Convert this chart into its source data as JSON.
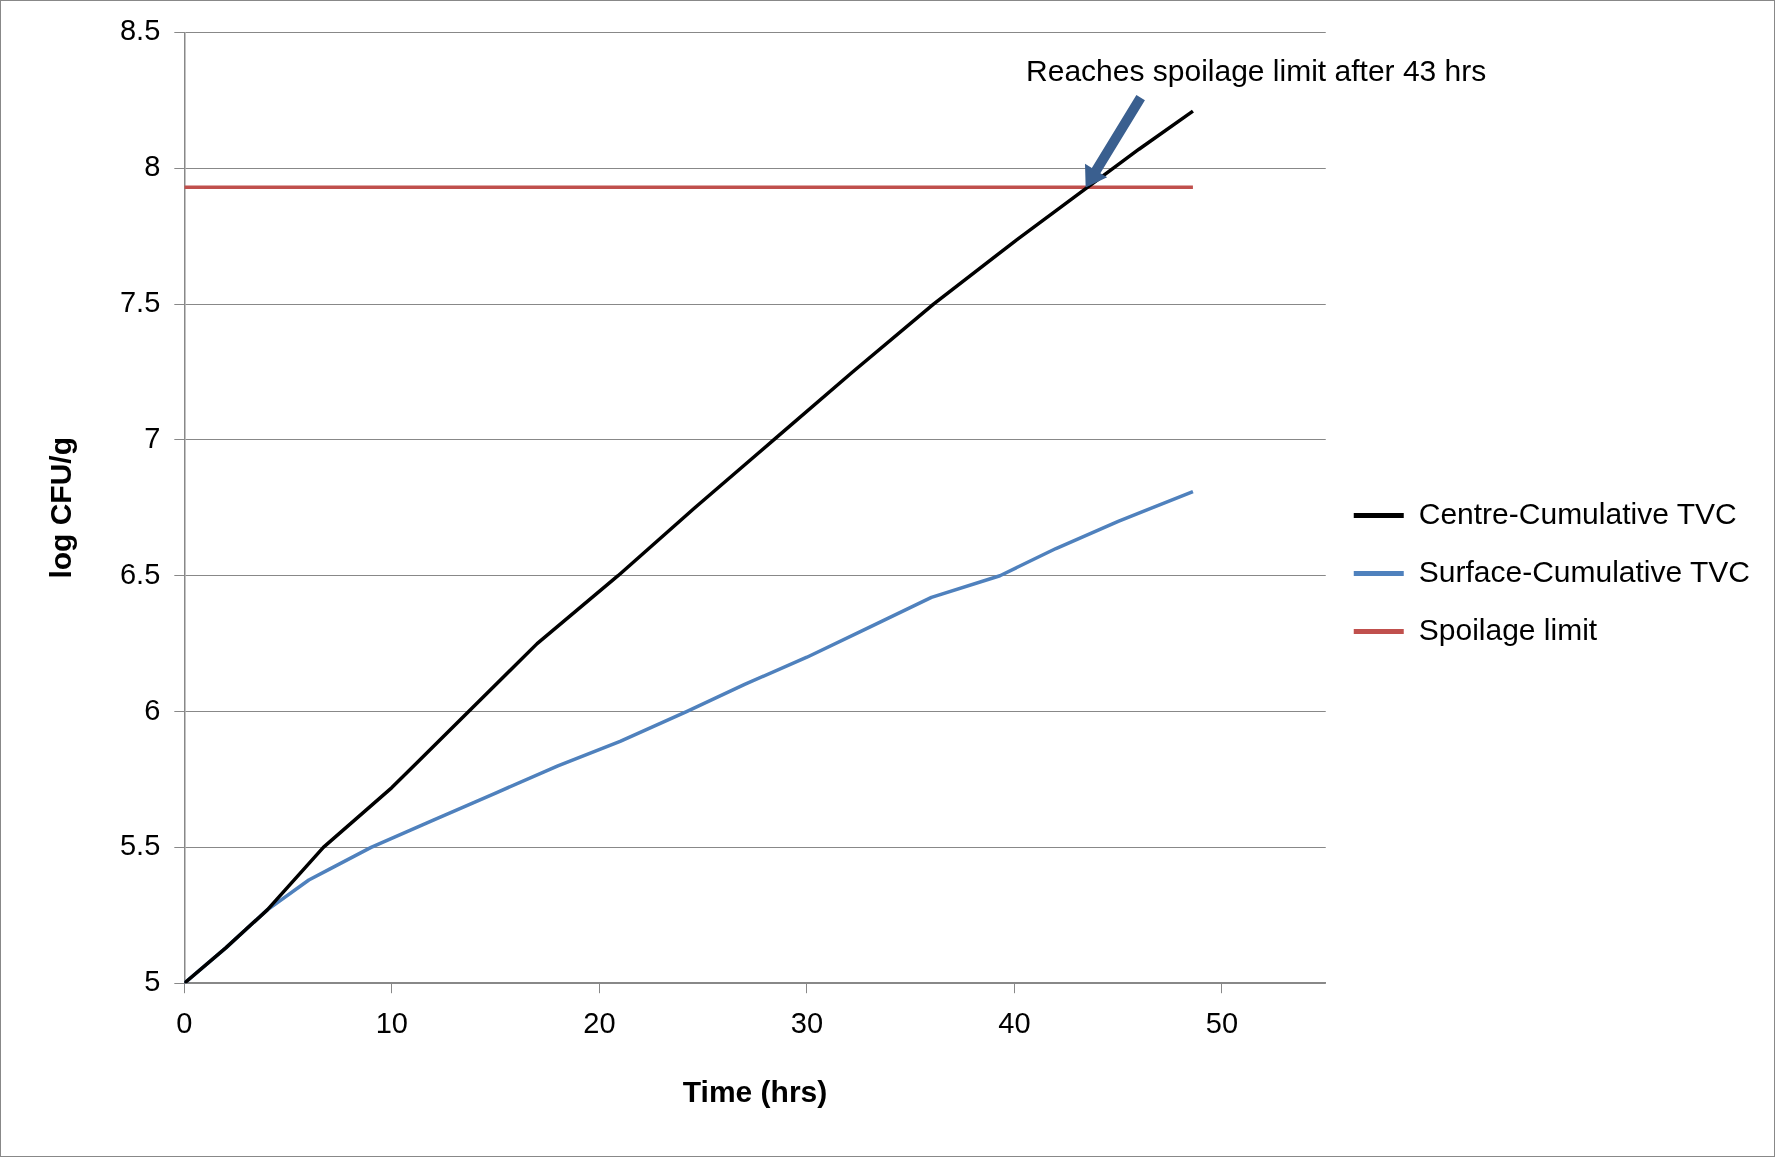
{
  "chart_data": {
    "type": "line",
    "xlabel": "Time (hrs)",
    "ylabel": "log CFU/g",
    "xlim": [
      0,
      55
    ],
    "xticks": [
      0,
      10,
      20,
      30,
      40,
      50
    ],
    "ylim": [
      5,
      8.5
    ],
    "yticks": [
      5,
      5.5,
      6,
      6.5,
      7,
      7.5,
      8,
      8.5
    ],
    "grid": "y",
    "legend": "right",
    "marker": "none",
    "line_style": "solid",
    "series": [
      {
        "name": "Centre-Cumulative TVC",
        "color": "#000000",
        "x": [
          0,
          2,
          4,
          6.7,
          10,
          13.7,
          17,
          20.9,
          24.6,
          28.4,
          32.2,
          36.1,
          40,
          46,
          48.6
        ],
        "values": [
          5,
          5.13,
          5.27,
          5.5,
          5.72,
          6,
          6.25,
          6.5,
          6.75,
          7,
          7.25,
          7.5,
          7.73,
          8.07,
          8.21
        ]
      },
      {
        "name": "Surface-Cumulative TVC",
        "color": "#4f81bd",
        "x": [
          0,
          2,
          4,
          6,
          7,
          9,
          12,
          15,
          18,
          21,
          24.2,
          27,
          30,
          33,
          36,
          39.3,
          42,
          45,
          48.6
        ],
        "values": [
          5,
          5.13,
          5.27,
          5.38,
          5.42,
          5.5,
          5.6,
          5.7,
          5.8,
          5.89,
          6,
          6.1,
          6.2,
          6.31,
          6.42,
          6.5,
          6.6,
          6.7,
          6.81
        ]
      },
      {
        "name": "Spoilage limit",
        "color": "#c0504d",
        "x": [
          0,
          48.6
        ],
        "values": [
          7.93,
          7.93
        ]
      }
    ],
    "annotations": [
      "Reaches spoilage limit after 43 hrs"
    ]
  }
}
